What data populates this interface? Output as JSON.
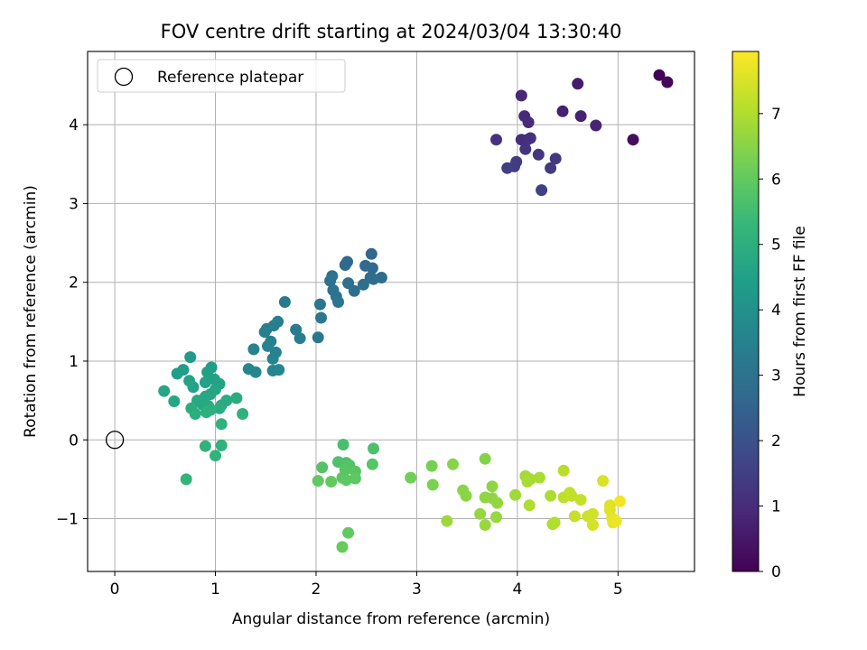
{
  "chart_data": {
    "type": "scatter",
    "title": "FOV centre drift starting at 2024/03/04 13:30:40",
    "xlabel": "Angular distance from reference (arcmin)",
    "ylabel": "Rotation from reference (arcmin)",
    "xlim": [
      -0.27,
      5.76
    ],
    "ylim": [
      -1.67,
      4.93
    ],
    "xticks": [
      0,
      1,
      2,
      3,
      4,
      5
    ],
    "xtick_labels": [
      "0",
      "1",
      "2",
      "3",
      "4",
      "5"
    ],
    "yticks": [
      -1,
      0,
      1,
      2,
      3,
      4
    ],
    "ytick_labels": [
      "−1",
      "0",
      "1",
      "2",
      "3",
      "4"
    ],
    "grid": true,
    "legend": {
      "placement": "upper-left",
      "entries": [
        {
          "label": "Reference platepar",
          "marker": "hollow-circle"
        }
      ]
    },
    "colorbar": {
      "label": "Hours from first FF file",
      "colormap": "viridis",
      "range": [
        0,
        7.95
      ],
      "ticks": [
        0,
        1,
        2,
        3,
        4,
        5,
        6,
        7
      ],
      "tick_labels": [
        "0",
        "1",
        "2",
        "3",
        "4",
        "5",
        "6",
        "7"
      ]
    },
    "reference": {
      "x": 0,
      "y": 0
    },
    "points": [
      [
        5.41,
        4.63,
        0.05
      ],
      [
        5.49,
        4.54,
        0.15
      ],
      [
        5.15,
        3.81,
        0.3
      ],
      [
        4.6,
        4.52,
        0.6
      ],
      [
        4.45,
        4.17,
        0.7
      ],
      [
        4.63,
        4.11,
        0.75
      ],
      [
        4.78,
        3.99,
        0.8
      ],
      [
        4.04,
        4.37,
        0.9
      ],
      [
        4.07,
        4.11,
        0.95
      ],
      [
        4.11,
        4.03,
        1.0
      ],
      [
        4.04,
        3.81,
        1.05
      ],
      [
        4.1,
        3.81,
        1.1
      ],
      [
        4.13,
        3.83,
        1.12
      ],
      [
        3.79,
        3.81,
        1.15
      ],
      [
        4.08,
        3.69,
        1.2
      ],
      [
        4.21,
        3.62,
        1.25
      ],
      [
        4.38,
        3.57,
        1.3
      ],
      [
        4.33,
        3.45,
        1.35
      ],
      [
        3.99,
        3.53,
        1.4
      ],
      [
        3.97,
        3.47,
        1.45
      ],
      [
        3.9,
        3.45,
        1.48
      ],
      [
        4.24,
        3.17,
        1.55
      ],
      [
        2.55,
        2.36,
        2.6
      ],
      [
        2.29,
        2.22,
        2.65
      ],
      [
        2.31,
        2.26,
        2.7
      ],
      [
        2.49,
        2.21,
        2.72
      ],
      [
        2.56,
        2.18,
        2.75
      ],
      [
        2.54,
        2.06,
        2.8
      ],
      [
        2.65,
        2.06,
        2.82
      ],
      [
        2.57,
        2.04,
        2.85
      ],
      [
        2.47,
        1.97,
        2.88
      ],
      [
        2.38,
        1.89,
        2.9
      ],
      [
        2.32,
        1.99,
        2.92
      ],
      [
        2.16,
        2.08,
        2.95
      ],
      [
        2.14,
        2.02,
        2.98
      ],
      [
        2.17,
        1.9,
        3.0
      ],
      [
        2.2,
        1.82,
        3.05
      ],
      [
        2.22,
        1.75,
        3.08
      ],
      [
        2.04,
        1.72,
        3.1
      ],
      [
        2.05,
        1.55,
        3.15
      ],
      [
        2.02,
        1.3,
        3.2
      ],
      [
        1.69,
        1.75,
        3.25
      ],
      [
        1.8,
        1.4,
        3.3
      ],
      [
        1.84,
        1.29,
        3.35
      ],
      [
        1.62,
        1.5,
        3.4
      ],
      [
        1.58,
        1.45,
        3.42
      ],
      [
        1.51,
        1.41,
        3.45
      ],
      [
        1.49,
        1.37,
        3.48
      ],
      [
        1.55,
        1.25,
        3.5
      ],
      [
        1.52,
        1.19,
        3.52
      ],
      [
        1.38,
        1.15,
        3.55
      ],
      [
        1.6,
        1.11,
        3.58
      ],
      [
        1.57,
        1.03,
        3.6
      ],
      [
        1.57,
        0.88,
        3.62
      ],
      [
        1.63,
        0.89,
        3.65
      ],
      [
        1.33,
        0.9,
        3.68
      ],
      [
        1.4,
        0.86,
        3.7
      ],
      [
        0.75,
        1.05,
        4.3
      ],
      [
        0.96,
        0.92,
        4.35
      ],
      [
        0.68,
        0.89,
        4.4
      ],
      [
        0.62,
        0.84,
        4.45
      ],
      [
        0.92,
        0.86,
        4.5
      ],
      [
        0.99,
        0.77,
        4.52
      ],
      [
        0.9,
        0.73,
        4.55
      ],
      [
        1.04,
        0.71,
        4.58
      ],
      [
        0.74,
        0.75,
        4.6
      ],
      [
        0.78,
        0.67,
        4.62
      ],
      [
        1.0,
        0.64,
        4.65
      ],
      [
        0.95,
        0.58,
        4.68
      ],
      [
        0.49,
        0.62,
        4.7
      ],
      [
        0.9,
        0.55,
        4.72
      ],
      [
        0.59,
        0.49,
        4.75
      ],
      [
        0.82,
        0.5,
        4.78
      ],
      [
        0.87,
        0.45,
        4.8
      ],
      [
        0.93,
        0.43,
        4.82
      ],
      [
        1.06,
        0.44,
        4.85
      ],
      [
        1.11,
        0.5,
        4.88
      ],
      [
        1.21,
        0.53,
        4.9
      ],
      [
        1.04,
        0.4,
        4.92
      ],
      [
        0.76,
        0.4,
        4.95
      ],
      [
        0.8,
        0.33,
        4.98
      ],
      [
        0.91,
        0.35,
        5.0
      ],
      [
        0.95,
        0.38,
        5.02
      ],
      [
        1.27,
        0.33,
        5.05
      ],
      [
        1.06,
        0.2,
        5.08
      ],
      [
        1.06,
        -0.07,
        5.1
      ],
      [
        0.9,
        -0.08,
        5.12
      ],
      [
        1.0,
        -0.2,
        5.15
      ],
      [
        0.71,
        -0.5,
        5.2
      ],
      [
        2.27,
        -0.06,
        5.6
      ],
      [
        2.57,
        -0.11,
        5.65
      ],
      [
        2.22,
        -0.28,
        5.7
      ],
      [
        2.3,
        -0.29,
        5.72
      ],
      [
        2.33,
        -0.32,
        5.75
      ],
      [
        2.06,
        -0.35,
        5.78
      ],
      [
        2.56,
        -0.31,
        5.8
      ],
      [
        2.39,
        -0.4,
        5.82
      ],
      [
        2.29,
        -0.38,
        5.85
      ],
      [
        2.26,
        -0.48,
        5.88
      ],
      [
        2.39,
        -0.49,
        5.9
      ],
      [
        2.3,
        -0.51,
        5.92
      ],
      [
        2.02,
        -0.52,
        5.95
      ],
      [
        2.15,
        -0.53,
        5.98
      ],
      [
        2.32,
        -1.18,
        6.0
      ],
      [
        2.26,
        -1.36,
        6.05
      ],
      [
        2.94,
        -0.48,
        6.2
      ],
      [
        3.15,
        -0.33,
        6.3
      ],
      [
        3.16,
        -0.57,
        6.35
      ],
      [
        3.68,
        -0.24,
        6.45
      ],
      [
        3.36,
        -0.31,
        6.5
      ],
      [
        3.46,
        -0.64,
        6.52
      ],
      [
        3.49,
        -0.71,
        6.55
      ],
      [
        3.75,
        -0.59,
        6.58
      ],
      [
        3.68,
        -0.73,
        6.6
      ],
      [
        3.75,
        -0.74,
        6.62
      ],
      [
        3.8,
        -0.8,
        6.65
      ],
      [
        3.63,
        -0.94,
        6.68
      ],
      [
        3.79,
        -0.98,
        6.7
      ],
      [
        3.68,
        -1.08,
        6.72
      ],
      [
        3.3,
        -1.03,
        6.75
      ],
      [
        3.98,
        -0.7,
        6.8
      ],
      [
        4.08,
        -0.46,
        6.85
      ],
      [
        4.13,
        -0.5,
        6.88
      ],
      [
        4.1,
        -0.53,
        6.9
      ],
      [
        4.22,
        -0.48,
        6.92
      ],
      [
        4.33,
        -0.71,
        6.95
      ],
      [
        4.12,
        -0.83,
        6.98
      ],
      [
        4.35,
        -1.07,
        7.0
      ],
      [
        4.37,
        -1.05,
        7.02
      ],
      [
        4.46,
        -0.39,
        7.1
      ],
      [
        4.46,
        -0.73,
        7.15
      ],
      [
        4.52,
        -0.67,
        7.2
      ],
      [
        4.54,
        -0.71,
        7.22
      ],
      [
        4.63,
        -0.76,
        7.25
      ],
      [
        4.57,
        -0.97,
        7.3
      ],
      [
        4.7,
        -0.97,
        7.35
      ],
      [
        4.75,
        -0.94,
        7.4
      ],
      [
        4.75,
        -1.08,
        7.45
      ],
      [
        4.85,
        -0.52,
        7.5
      ],
      [
        4.92,
        -0.83,
        7.55
      ],
      [
        4.92,
        -0.89,
        7.6
      ],
      [
        4.94,
        -0.99,
        7.65
      ],
      [
        4.95,
        -1.05,
        7.7
      ],
      [
        4.98,
        -1.03,
        7.75
      ],
      [
        5.02,
        -0.78,
        7.8
      ]
    ]
  }
}
